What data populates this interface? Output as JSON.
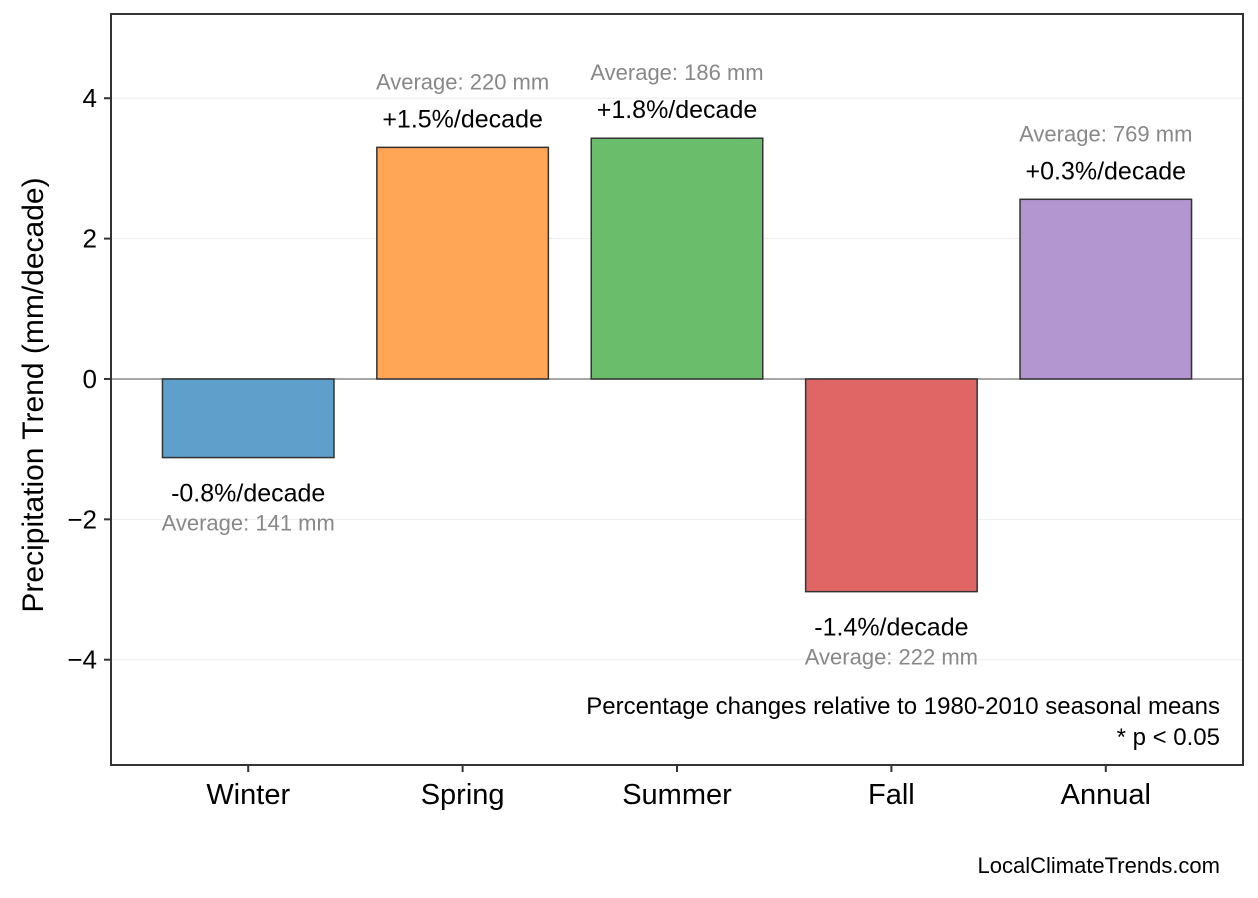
{
  "chart_data": {
    "type": "bar",
    "title": "",
    "xlabel": "",
    "ylabel": "Precipitation Trend (mm/decade)",
    "categories": [
      "Winter",
      "Spring",
      "Summer",
      "Fall",
      "Annual"
    ],
    "values": [
      -1.12,
      3.3,
      3.43,
      -3.03,
      2.56
    ],
    "trend_labels": [
      "-0.8%/decade",
      "+1.5%/decade",
      "+1.8%/decade",
      "-1.4%/decade",
      "+0.3%/decade"
    ],
    "average_labels": [
      "Average: 141 mm",
      "Average: 220 mm",
      "Average: 186 mm",
      "Average: 222 mm",
      "Average: 769 mm"
    ],
    "colors": [
      "#5f9fcb",
      "#ffa556",
      "#6abd6a",
      "#e06666",
      "#b395cf"
    ],
    "ylim": [
      -5.5,
      5.2
    ],
    "yticks": [
      -4,
      -2,
      0,
      2,
      4
    ],
    "ytick_labels": [
      "−4",
      "−2",
      "0",
      "2",
      "4"
    ],
    "grid": true,
    "annotation_lines": [
      "Percentage changes relative to 1980-2010 seasonal means",
      "* p < 0.05"
    ],
    "source": "LocalClimateTrends.com"
  }
}
